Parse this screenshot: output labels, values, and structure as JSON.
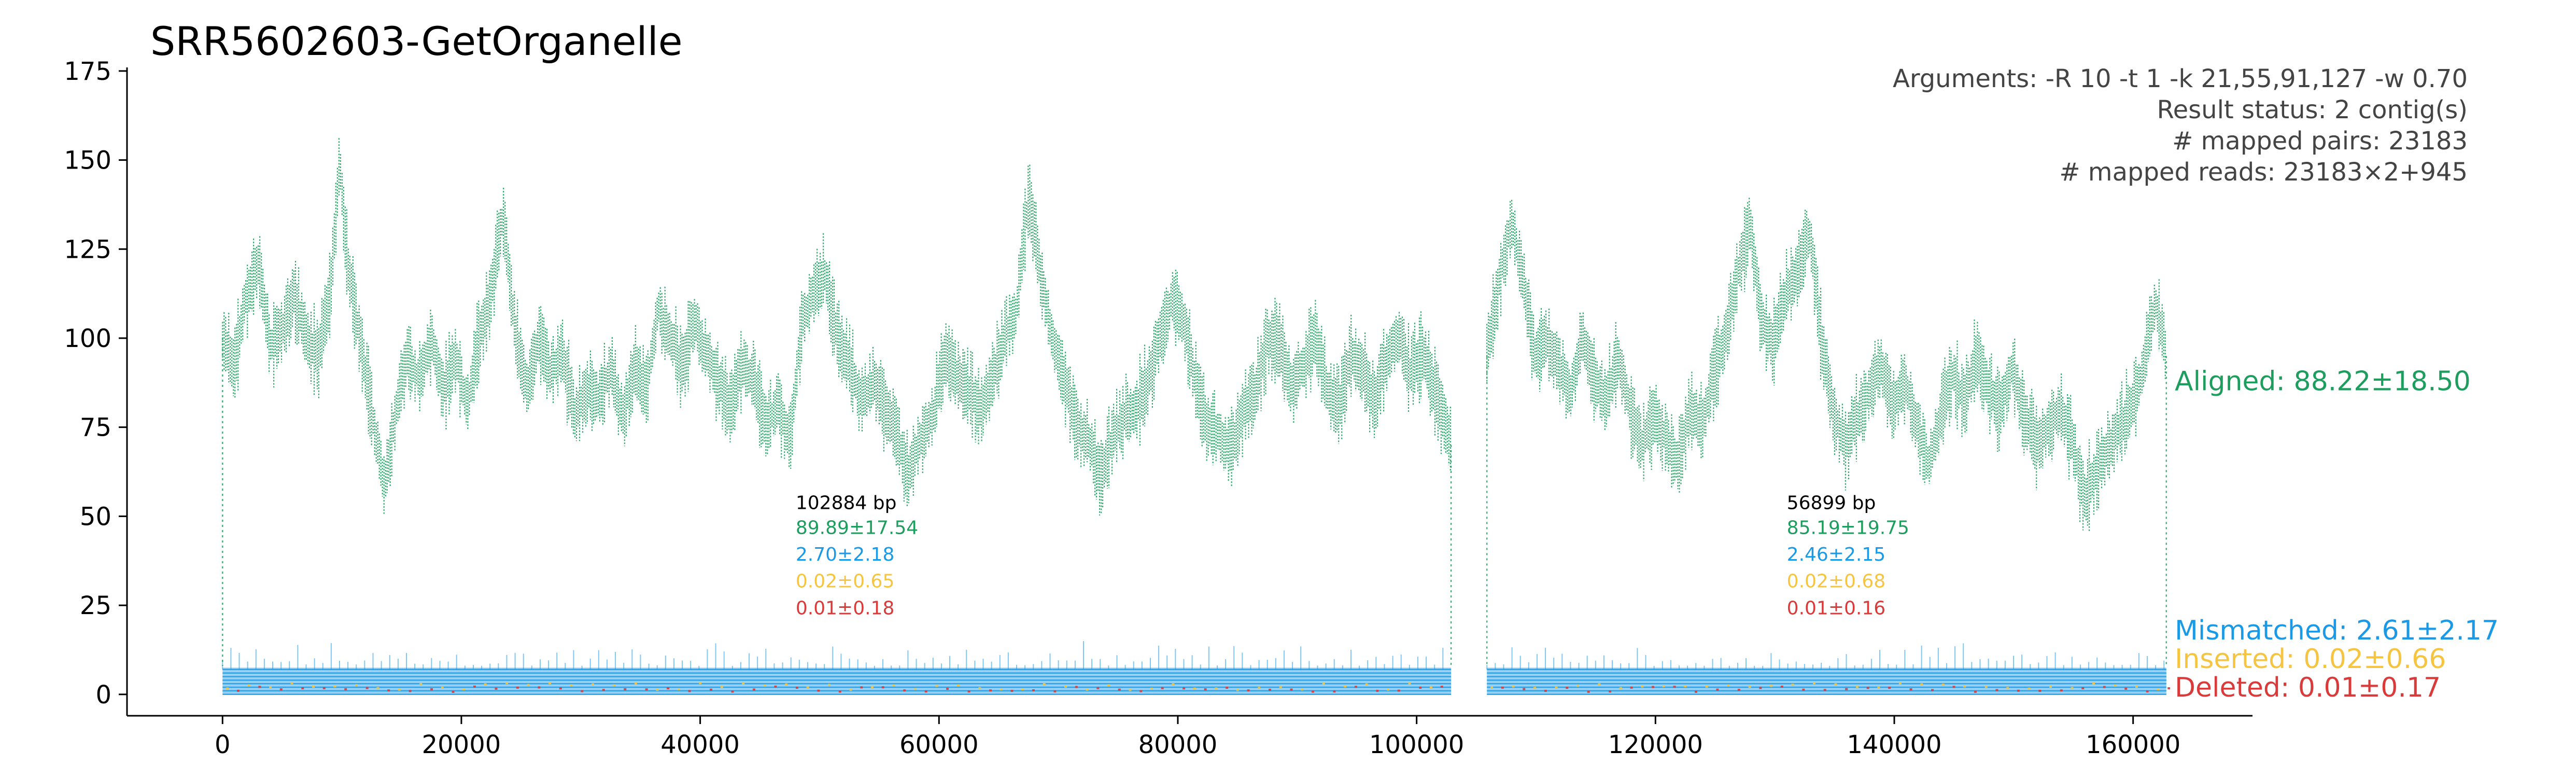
{
  "chart_data": {
    "type": "scatter",
    "title": "SRR5602603-GetOrganelle",
    "xlabel": "",
    "ylabel": "",
    "xlim": [
      -8000,
      170000
    ],
    "ylim": [
      -6,
      176
    ],
    "x_ticks": [
      0,
      20000,
      40000,
      60000,
      80000,
      100000,
      120000,
      140000,
      160000
    ],
    "y_ticks": [
      0,
      25,
      50,
      75,
      100,
      125,
      150,
      175
    ],
    "grid": false,
    "arguments": [
      "Arguments: -R 10 -t 1 -k 21,55,91,127 -w 0.70",
      "Result status: 2 contig(s)",
      "# mapped pairs: 23183",
      "# mapped reads: 23183×2+945"
    ],
    "colors": {
      "aligned": "#1e9e5e",
      "mismatched": "#1a9ae6",
      "inserted": "#f5c542",
      "deleted": "#d93b3b",
      "bp": "#000000"
    },
    "series_summary": [
      {
        "key": "aligned",
        "label": "Aligned: 88.22±18.50",
        "y": 88
      },
      {
        "key": "mismatched",
        "label": "Mismatched: 2.61±2.17",
        "y": 18
      },
      {
        "key": "inserted",
        "label": "Inserted: 0.02±0.66",
        "y": 10
      },
      {
        "key": "deleted",
        "label": "Deleted: 0.01±0.17",
        "y": 2
      }
    ],
    "contigs": [
      {
        "start": 0,
        "end": 102884,
        "length_label": "102884 bp",
        "aligned_label": "89.89±17.54",
        "mismatched_label": "2.70±2.18",
        "inserted_label": "0.02±0.65",
        "deleted_label": "0.01±0.18",
        "label_x": 48000,
        "aligned_profile": [
          [
            0,
            100
          ],
          [
            1000,
            92
          ],
          [
            2000,
            112
          ],
          [
            3000,
            120
          ],
          [
            4000,
            98
          ],
          [
            5000,
            102
          ],
          [
            6000,
            112
          ],
          [
            7000,
            100
          ],
          [
            8000,
            95
          ],
          [
            9000,
            112
          ],
          [
            9800,
            150
          ],
          [
            10500,
            120
          ],
          [
            11500,
            100
          ],
          [
            12500,
            80
          ],
          [
            13500,
            58
          ],
          [
            14500,
            78
          ],
          [
            15500,
            95
          ],
          [
            16500,
            88
          ],
          [
            17500,
            100
          ],
          [
            18500,
            85
          ],
          [
            19500,
            95
          ],
          [
            20500,
            80
          ],
          [
            21500,
            100
          ],
          [
            22500,
            112
          ],
          [
            23500,
            135
          ],
          [
            24500,
            102
          ],
          [
            25500,
            85
          ],
          [
            26500,
            100
          ],
          [
            27500,
            90
          ],
          [
            28500,
            95
          ],
          [
            29500,
            78
          ],
          [
            30500,
            85
          ],
          [
            31500,
            82
          ],
          [
            32500,
            92
          ],
          [
            33500,
            78
          ],
          [
            34500,
            92
          ],
          [
            35500,
            85
          ],
          [
            36500,
            108
          ],
          [
            37500,
            100
          ],
          [
            38500,
            92
          ],
          [
            39500,
            105
          ],
          [
            40500,
            95
          ],
          [
            41500,
            88
          ],
          [
            42500,
            80
          ],
          [
            43500,
            92
          ],
          [
            44500,
            88
          ],
          [
            45500,
            75
          ],
          [
            46500,
            82
          ],
          [
            47500,
            70
          ],
          [
            48500,
            105
          ],
          [
            49500,
            112
          ],
          [
            50500,
            118
          ],
          [
            51500,
            100
          ],
          [
            52500,
            92
          ],
          [
            53500,
            82
          ],
          [
            54500,
            88
          ],
          [
            55500,
            80
          ],
          [
            56500,
            72
          ],
          [
            57500,
            62
          ],
          [
            58500,
            72
          ],
          [
            59500,
            78
          ],
          [
            60500,
            95
          ],
          [
            61500,
            90
          ],
          [
            62500,
            85
          ],
          [
            63500,
            80
          ],
          [
            64500,
            88
          ],
          [
            65500,
            100
          ],
          [
            66500,
            108
          ],
          [
            67500,
            140
          ],
          [
            68500,
            118
          ],
          [
            69500,
            100
          ],
          [
            70500,
            88
          ],
          [
            71500,
            75
          ],
          [
            72500,
            72
          ],
          [
            73500,
            60
          ],
          [
            74500,
            72
          ],
          [
            75500,
            78
          ],
          [
            76500,
            80
          ],
          [
            77500,
            88
          ],
          [
            78500,
            100
          ],
          [
            79500,
            110
          ],
          [
            80500,
            105
          ],
          [
            81500,
            88
          ],
          [
            82500,
            75
          ],
          [
            83500,
            72
          ],
          [
            84500,
            68
          ],
          [
            85500,
            80
          ],
          [
            86500,
            85
          ],
          [
            87500,
            100
          ],
          [
            88500,
            98
          ],
          [
            89500,
            85
          ],
          [
            90500,
            92
          ],
          [
            91500,
            100
          ],
          [
            92500,
            85
          ],
          [
            93500,
            80
          ],
          [
            94500,
            95
          ],
          [
            95500,
            90
          ],
          [
            96500,
            82
          ],
          [
            97500,
            95
          ],
          [
            98500,
            100
          ],
          [
            99500,
            90
          ],
          [
            100500,
            95
          ],
          [
            101500,
            85
          ],
          [
            102500,
            75
          ],
          [
            102884,
            70
          ]
        ]
      },
      {
        "start": 105884,
        "end": 162783,
        "length_label": "56899 bp",
        "aligned_label": "85.19±19.75",
        "mismatched_label": "2.46±2.15",
        "inserted_label": "0.02±0.68",
        "deleted_label": "0.01±0.16",
        "label_x": 131000,
        "aligned_profile": [
          [
            105884,
            95
          ],
          [
            106884,
            115
          ],
          [
            107884,
            132
          ],
          [
            108884,
            118
          ],
          [
            109884,
            95
          ],
          [
            110884,
            100
          ],
          [
            111884,
            92
          ],
          [
            112884,
            85
          ],
          [
            113884,
            100
          ],
          [
            114884,
            88
          ],
          [
            115884,
            82
          ],
          [
            116884,
            95
          ],
          [
            117884,
            80
          ],
          [
            118884,
            70
          ],
          [
            119884,
            78
          ],
          [
            120884,
            72
          ],
          [
            121884,
            65
          ],
          [
            122884,
            80
          ],
          [
            123884,
            75
          ],
          [
            124884,
            90
          ],
          [
            125884,
            100
          ],
          [
            126884,
            118
          ],
          [
            127884,
            132
          ],
          [
            128884,
            105
          ],
          [
            129884,
            98
          ],
          [
            130884,
            112
          ],
          [
            131884,
            118
          ],
          [
            132884,
            130
          ],
          [
            133884,
            100
          ],
          [
            134884,
            80
          ],
          [
            135884,
            70
          ],
          [
            136884,
            78
          ],
          [
            137884,
            85
          ],
          [
            138884,
            92
          ],
          [
            139884,
            80
          ],
          [
            140884,
            88
          ],
          [
            141884,
            75
          ],
          [
            142884,
            65
          ],
          [
            143884,
            78
          ],
          [
            144884,
            90
          ],
          [
            145884,
            82
          ],
          [
            146884,
            95
          ],
          [
            147884,
            85
          ],
          [
            148884,
            80
          ],
          [
            149884,
            92
          ],
          [
            150884,
            78
          ],
          [
            151884,
            70
          ],
          [
            152884,
            75
          ],
          [
            153884,
            80
          ],
          [
            154884,
            72
          ],
          [
            155884,
            55
          ],
          [
            156884,
            62
          ],
          [
            157884,
            68
          ],
          [
            158884,
            75
          ],
          [
            159884,
            80
          ],
          [
            160884,
            92
          ],
          [
            161884,
            110
          ],
          [
            162783,
            95
          ]
        ]
      }
    ]
  }
}
